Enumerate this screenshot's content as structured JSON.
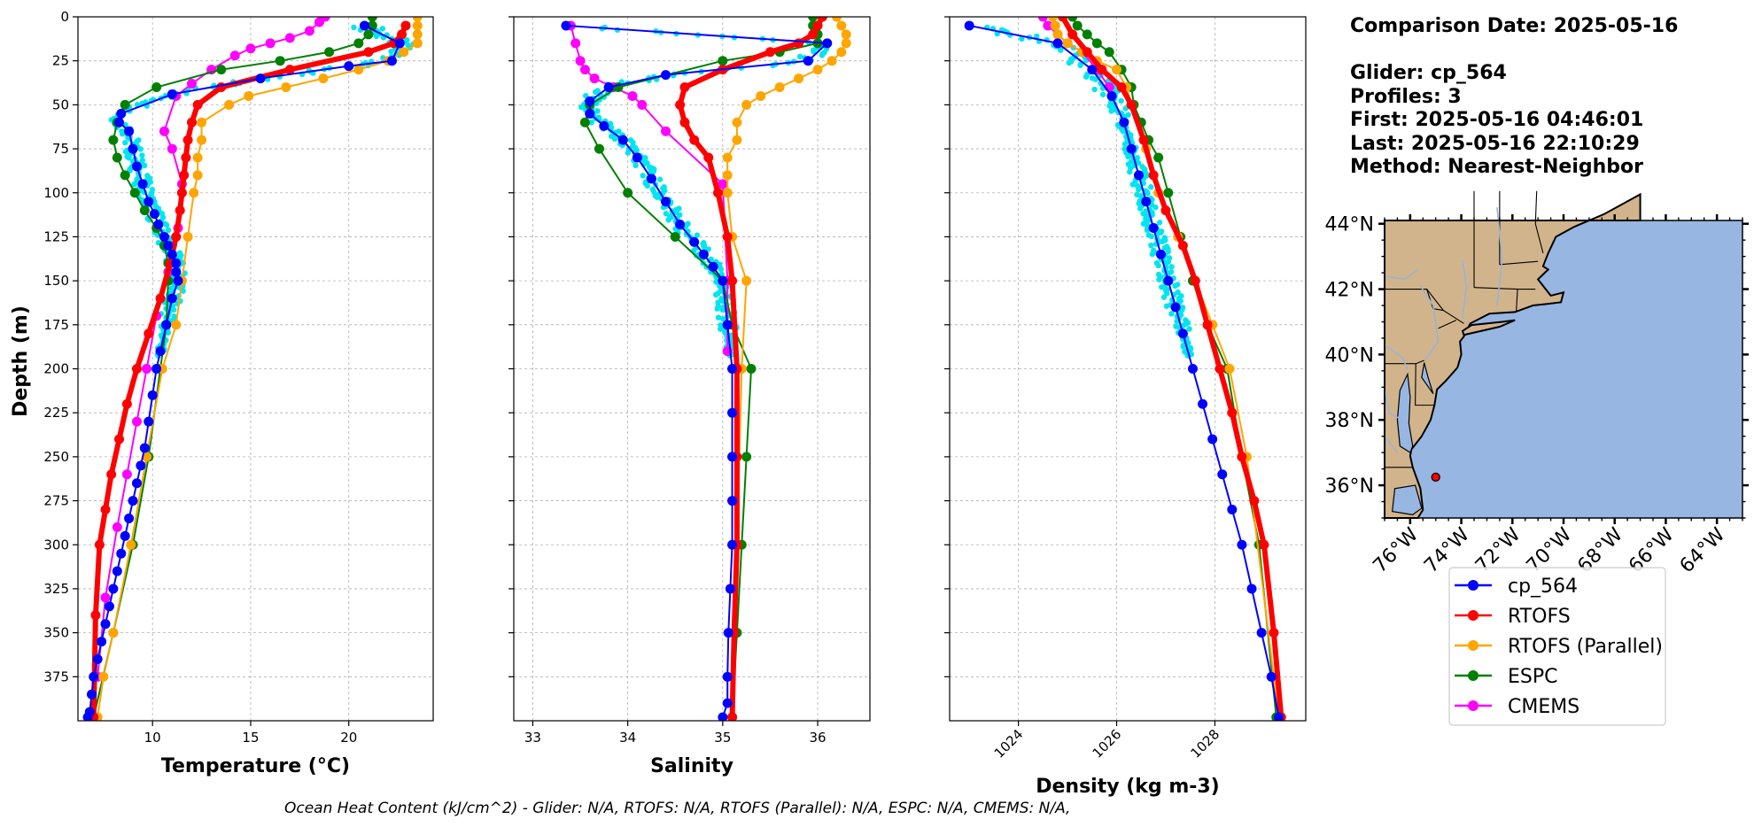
{
  "chart_data": [
    {
      "type": "line",
      "xlabel": "Temperature (°C)",
      "ylabel": "Depth (m)",
      "xlim": [
        6.2,
        24.3
      ],
      "ylim": [
        400,
        0
      ],
      "xticks": [
        10,
        15,
        20
      ],
      "yticks": [
        0,
        25,
        50,
        75,
        100,
        125,
        150,
        175,
        200,
        225,
        250,
        275,
        300,
        325,
        350,
        375
      ],
      "grid": true,
      "series": [
        {
          "name": "cp_564",
          "color": "#0000ff",
          "x": [
            20.8,
            22.6,
            22.2,
            20.0,
            15.5,
            11.0,
            8.4,
            8.3,
            8.8,
            9.0,
            9.2,
            9.5,
            9.8,
            10.1,
            10.3,
            10.6,
            10.8,
            11.0,
            11.2,
            11.2,
            11.3,
            11.0,
            10.7,
            10.4,
            10.2,
            10.0,
            9.8,
            9.6,
            9.4,
            9.2,
            9.0,
            8.8,
            8.6,
            8.4,
            8.2,
            8.0,
            7.8,
            7.6,
            7.4,
            7.2,
            7.0,
            6.9,
            6.8,
            6.7
          ],
          "y": [
            5,
            15,
            25,
            28,
            35,
            44,
            55,
            60,
            65,
            75,
            85,
            95,
            105,
            112,
            118,
            125,
            130,
            135,
            140,
            145,
            150,
            160,
            175,
            190,
            200,
            215,
            230,
            245,
            255,
            265,
            275,
            285,
            295,
            305,
            315,
            325,
            335,
            345,
            355,
            365,
            375,
            385,
            395,
            398
          ]
        },
        {
          "name": "RTOFS",
          "color": "#ff0000",
          "x": [
            22.9,
            22.7,
            22.3,
            21.0,
            17.0,
            13.5,
            12.3,
            12.0,
            11.8,
            11.7,
            11.6,
            11.5,
            11.4,
            11.2,
            10.9,
            10.4,
            9.8,
            9.2,
            8.7,
            8.3,
            7.9,
            7.6,
            7.3,
            7.1,
            7.0
          ],
          "y": [
            5,
            10,
            15,
            20,
            30,
            40,
            50,
            60,
            70,
            80,
            90,
            100,
            110,
            125,
            140,
            160,
            180,
            200,
            220,
            240,
            260,
            280,
            300,
            340,
            398
          ]
        },
        {
          "name": "RTOFS (Parallel)",
          "color": "#ffa500",
          "x": [
            23.5,
            23.5,
            23.5,
            23.5,
            22.8,
            22.0,
            20.5,
            18.7,
            16.8,
            14.9,
            13.9,
            12.5,
            12.5,
            12.3,
            12.3,
            12.1,
            11.8,
            11.5,
            11.2,
            10.5,
            9.7,
            8.9,
            8.0,
            7.5,
            7.2
          ],
          "y": [
            0,
            5,
            10,
            15,
            20,
            25,
            30,
            35,
            40,
            45,
            50,
            60,
            70,
            80,
            90,
            100,
            125,
            150,
            175,
            200,
            250,
            300,
            350,
            375,
            398
          ]
        },
        {
          "name": "ESPC",
          "color": "#008000",
          "x": [
            21.2,
            21.2,
            21.0,
            20.5,
            19.0,
            16.5,
            13.5,
            10.2,
            8.6,
            8.2,
            8.0,
            8.2,
            8.6,
            9.1,
            9.6,
            10.2,
            10.6,
            10.8,
            10.8,
            10.7,
            10.4,
            9.8,
            9.0,
            8.0,
            7.0
          ],
          "y": [
            0,
            5,
            10,
            15,
            20,
            25,
            30,
            40,
            50,
            60,
            70,
            80,
            90,
            100,
            110,
            120,
            130,
            140,
            150,
            175,
            200,
            250,
            300,
            350,
            398
          ]
        },
        {
          "name": "CMEMS",
          "color": "#ff00ff",
          "x": [
            18.8,
            18.5,
            18.0,
            17.0,
            16.0,
            15.0,
            14.2,
            13.0,
            12.0,
            11.2,
            10.6,
            11.0,
            11.5,
            11.3,
            10.8,
            10.2,
            9.7,
            9.2,
            8.7,
            8.2,
            7.6,
            7.2
          ],
          "y": [
            0,
            3,
            8,
            12,
            15,
            18,
            22,
            30,
            38,
            45,
            65,
            75,
            95,
            120,
            145,
            170,
            200,
            230,
            260,
            290,
            330,
            375
          ]
        }
      ]
    },
    {
      "type": "line",
      "xlabel": "Salinity",
      "xlim": [
        32.8,
        36.55
      ],
      "ylim": [
        400,
        0
      ],
      "xticks": [
        33,
        34,
        35,
        36
      ],
      "grid": true,
      "series": [
        {
          "name": "cp_564",
          "color": "#0000ff",
          "x": [
            33.35,
            36.1,
            35.9,
            34.4,
            33.8,
            33.6,
            33.6,
            33.75,
            33.95,
            34.1,
            34.25,
            34.4,
            34.55,
            34.7,
            34.8,
            34.9,
            35.0,
            35.05,
            35.1,
            35.1,
            35.1,
            35.1,
            35.1,
            35.08,
            35.06,
            35.05,
            35.05,
            35.0
          ],
          "y": [
            5,
            15,
            25,
            33,
            40,
            48,
            55,
            62,
            70,
            80,
            92,
            105,
            118,
            128,
            135,
            142,
            150,
            175,
            200,
            225,
            250,
            275,
            300,
            325,
            350,
            375,
            390,
            398
          ]
        },
        {
          "name": "RTOFS",
          "color": "#ff0000",
          "x": [
            36.05,
            36.0,
            35.95,
            35.8,
            35.5,
            35.0,
            34.6,
            34.55,
            34.6,
            34.7,
            34.85,
            34.95,
            35.05,
            35.1,
            35.15,
            35.15,
            35.15,
            35.12,
            35.1
          ],
          "y": [
            0,
            5,
            10,
            15,
            20,
            30,
            40,
            50,
            60,
            70,
            80,
            100,
            125,
            150,
            200,
            250,
            300,
            350,
            398
          ]
        },
        {
          "name": "RTOFS (Parallel)",
          "color": "#ffa500",
          "x": [
            36.2,
            36.25,
            36.3,
            36.3,
            36.25,
            36.15,
            36.0,
            35.8,
            35.6,
            35.4,
            35.25,
            35.15,
            35.15,
            35.05,
            35.05,
            35.05,
            35.1,
            35.25,
            35.2,
            35.15,
            35.1
          ],
          "y": [
            0,
            5,
            10,
            15,
            20,
            25,
            30,
            35,
            40,
            45,
            50,
            60,
            70,
            80,
            90,
            100,
            125,
            150,
            200,
            300,
            398
          ]
        },
        {
          "name": "ESPC",
          "color": "#008000",
          "x": [
            35.95,
            35.95,
            36.0,
            36.0,
            35.6,
            35.0,
            33.9,
            33.6,
            33.55,
            33.7,
            34.0,
            34.5,
            35.0,
            35.1,
            35.3,
            35.25,
            35.2,
            35.15,
            35.1
          ],
          "y": [
            0,
            5,
            10,
            15,
            20,
            25,
            40,
            50,
            60,
            75,
            100,
            125,
            150,
            175,
            200,
            250,
            300,
            350,
            398
          ]
        },
        {
          "name": "CMEMS",
          "color": "#ff00ff",
          "x": [
            33.4,
            33.45,
            33.5,
            33.55,
            33.65,
            33.85,
            34.05,
            34.15,
            34.4,
            35.0,
            35.05,
            35.05,
            35.05
          ],
          "y": [
            5,
            15,
            25,
            30,
            35,
            40,
            45,
            50,
            65,
            95,
            150,
            175,
            190
          ]
        }
      ]
    },
    {
      "type": "line",
      "xlabel": "Density (kg m-3)",
      "xlim": [
        1022.6,
        1029.85
      ],
      "ylim": [
        400,
        0
      ],
      "xticks": [
        1024,
        1026,
        1028
      ],
      "grid": true,
      "series": [
        {
          "name": "cp_564",
          "color": "#0000ff",
          "x": [
            1023.0,
            1024.8,
            1025.5,
            1025.9,
            1026.15,
            1026.3,
            1026.45,
            1026.6,
            1026.75,
            1026.9,
            1027.05,
            1027.2,
            1027.35,
            1027.55,
            1027.75,
            1027.95,
            1028.15,
            1028.35,
            1028.55,
            1028.75,
            1028.95,
            1029.15,
            1029.3
          ],
          "y": [
            5,
            15,
            30,
            45,
            60,
            75,
            90,
            105,
            120,
            135,
            150,
            165,
            180,
            200,
            220,
            240,
            260,
            280,
            300,
            325,
            350,
            375,
            398
          ]
        },
        {
          "name": "RTOFS",
          "color": "#ff0000",
          "x": [
            1024.9,
            1025.1,
            1025.4,
            1025.7,
            1026.1,
            1026.3,
            1026.55,
            1026.75,
            1027.0,
            1027.35,
            1027.6,
            1027.85,
            1028.1,
            1028.35,
            1028.55,
            1028.8,
            1029.0,
            1029.2,
            1029.35
          ],
          "y": [
            0,
            10,
            20,
            30,
            40,
            50,
            70,
            90,
            110,
            130,
            150,
            175,
            200,
            225,
            250,
            275,
            300,
            350,
            398
          ]
        },
        {
          "name": "RTOFS (Parallel)",
          "color": "#ffa500",
          "x": [
            1024.7,
            1024.75,
            1024.8,
            1025.0,
            1025.3,
            1025.6,
            1026.0,
            1026.2,
            1026.3,
            1026.6,
            1026.85,
            1027.25,
            1027.6,
            1027.95,
            1028.3,
            1028.65,
            1029.3
          ],
          "y": [
            0,
            5,
            10,
            15,
            20,
            25,
            30,
            40,
            50,
            75,
            100,
            125,
            150,
            175,
            200,
            250,
            398
          ]
        },
        {
          "name": "ESPC",
          "color": "#008000",
          "x": [
            1025.1,
            1025.2,
            1025.4,
            1025.6,
            1025.85,
            1026.1,
            1026.3,
            1026.35,
            1026.5,
            1026.65,
            1026.85,
            1027.05,
            1027.3,
            1027.55,
            1027.85,
            1028.25,
            1028.55,
            1028.9,
            1029.25
          ],
          "y": [
            0,
            5,
            10,
            15,
            20,
            30,
            40,
            50,
            60,
            70,
            80,
            100,
            125,
            150,
            175,
            200,
            250,
            300,
            398
          ]
        },
        {
          "name": "CMEMS",
          "color": "#ff00ff",
          "x": [
            1024.5,
            1024.6,
            1024.8,
            1025.0,
            1025.3,
            1025.6,
            1025.85
          ],
          "y": [
            0,
            5,
            10,
            15,
            20,
            30,
            40
          ]
        }
      ]
    }
  ],
  "glider_scatter": {
    "color": "#00e5ee",
    "note_series": "cp_564 raw"
  },
  "depth_label": "Depth (m)",
  "info": {
    "comparison": "Comparison Date: 2025-05-16",
    "glider": "Glider: cp_564",
    "profiles": "Profiles: 3",
    "first": "First: 2025-05-16 04:46:01",
    "last": "Last: 2025-05-16 22:10:29",
    "method": "Method: Nearest-Neighbor"
  },
  "map": {
    "lat_ticks": [
      "44°N",
      "42°N",
      "40°N",
      "38°N",
      "36°N"
    ],
    "lon_ticks": [
      "76°W",
      "74°W",
      "72°W",
      "70°W",
      "68°W",
      "66°W",
      "64°W"
    ],
    "ocean_color": "#97b6e1",
    "land_color": "#d2b48c",
    "glider_position": {
      "lon": -75.0,
      "lat": 36.25
    }
  },
  "legend": [
    {
      "label": "cp_564",
      "color": "#0000ff"
    },
    {
      "label": "RTOFS",
      "color": "#ff0000"
    },
    {
      "label": "RTOFS (Parallel)",
      "color": "#ffa500"
    },
    {
      "label": "ESPC",
      "color": "#008000"
    },
    {
      "label": "CMEMS",
      "color": "#ff00ff"
    }
  ],
  "footer": "Ocean Heat Content (kJ/cm^2) - Glider: N/A,  RTOFS: N/A,  RTOFS (Parallel): N/A,  ESPC: N/A,  CMEMS: N/A,"
}
